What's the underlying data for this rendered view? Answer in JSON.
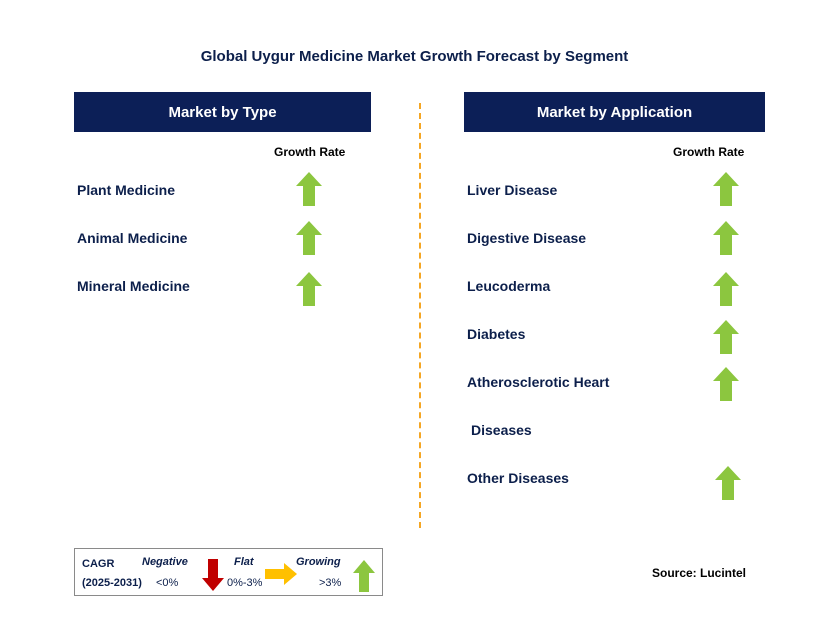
{
  "title": "Global Uygur Medicine Market Growth Forecast by Segment",
  "colors": {
    "header_bg": "#0c1f57",
    "up_arrow": "#8cc63f",
    "down_arrow": "#c00000",
    "flat_arrow": "#ffc000",
    "divider": "#f5a623"
  },
  "left": {
    "header": "Market by Type",
    "column_label": "Growth Rate",
    "rows": [
      {
        "label": "Plant Medicine",
        "trend": "up"
      },
      {
        "label": "Animal Medicine",
        "trend": "up"
      },
      {
        "label": "Mineral Medicine",
        "trend": "up"
      }
    ]
  },
  "right": {
    "header": "Market by Application",
    "column_label": "Growth Rate",
    "rows": [
      {
        "label": "Liver Disease",
        "trend": "up"
      },
      {
        "label": "Digestive Disease",
        "trend": "up"
      },
      {
        "label": "Leucoderma",
        "trend": "up"
      },
      {
        "label": "Diabetes",
        "trend": "up"
      },
      {
        "label": "Atherosclerotic Heart",
        "trend": "up"
      },
      {
        "label": "Diseases",
        "trend": "none"
      },
      {
        "label": "Other Diseases",
        "trend": "up"
      }
    ]
  },
  "legend": {
    "cagr_label": "CAGR",
    "period": "(2025-2031)",
    "negative_label": "Negative",
    "negative_range": "<0%",
    "flat_label": "Flat",
    "flat_range": "0%-3%",
    "growing_label": "Growing",
    "growing_range": ">3%"
  },
  "source": "Source: Lucintel"
}
